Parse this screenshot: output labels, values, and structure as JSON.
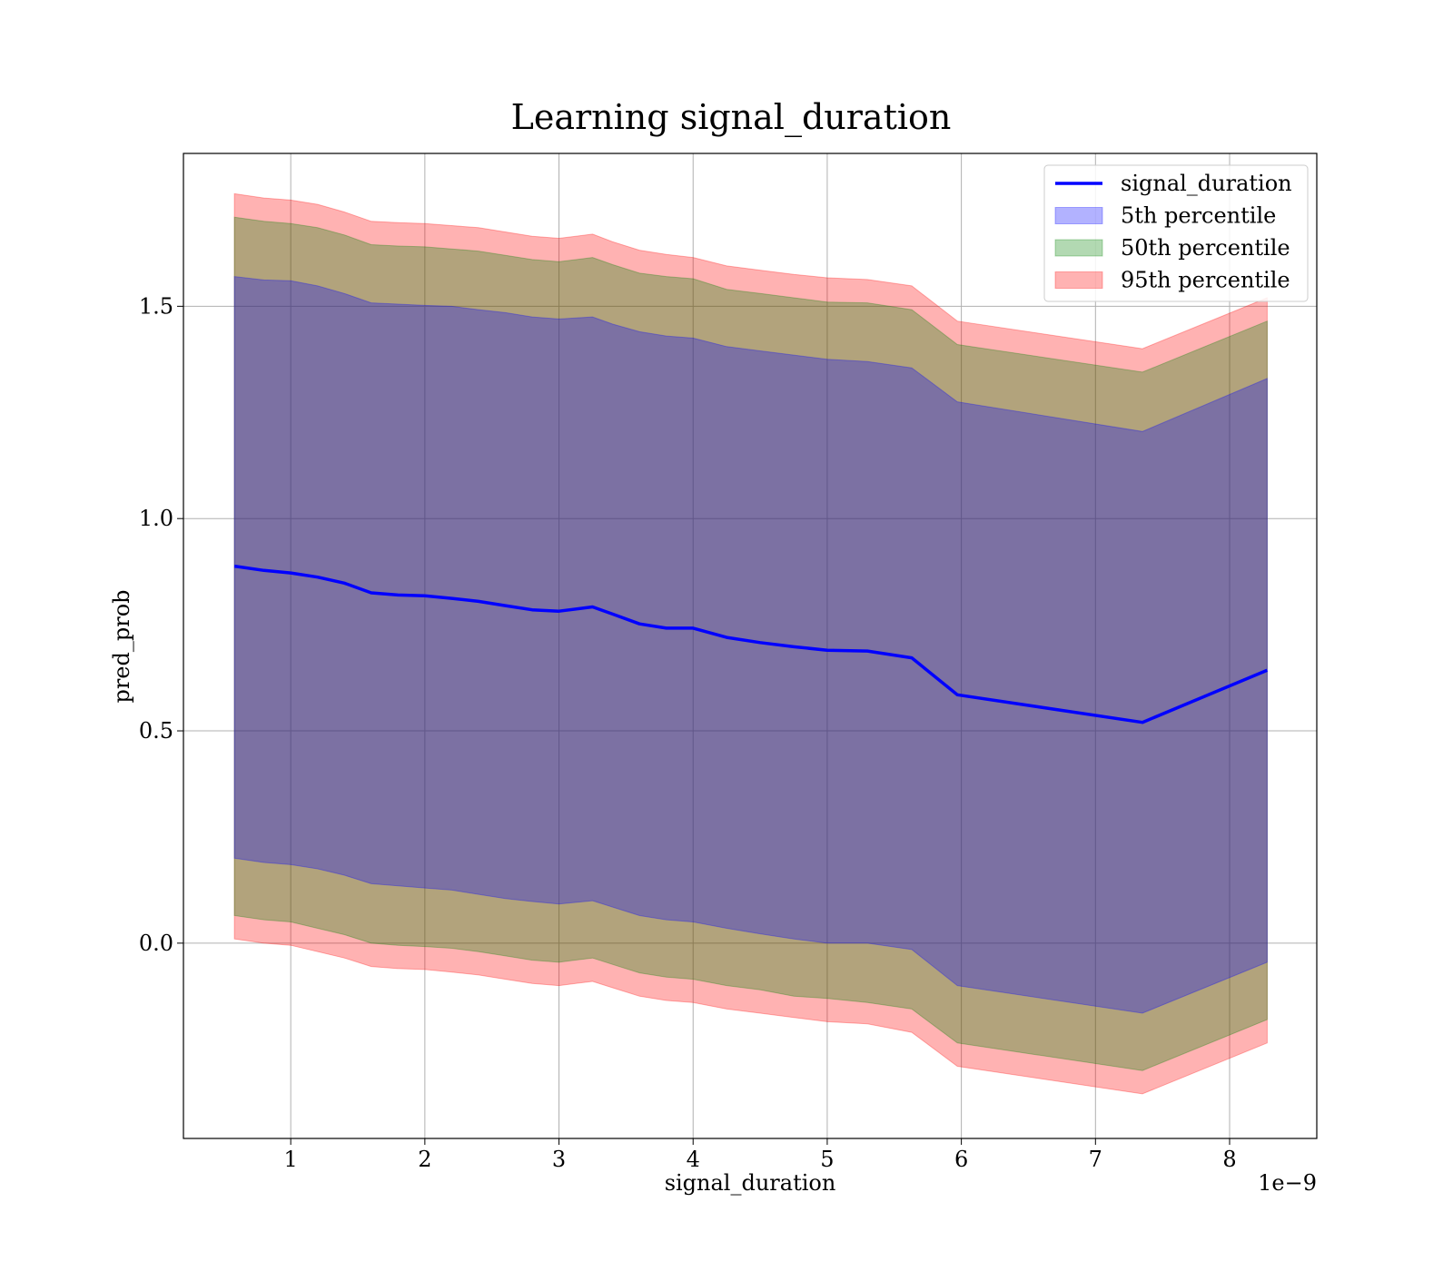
{
  "chart_data": {
    "type": "area",
    "title": "Learning signal_duration",
    "xlabel": "signal_duration",
    "ylabel": "pred_prob",
    "x_offset_label": "1e−9",
    "xlim": [
      0.2,
      8.65
    ],
    "ylim": [
      -0.46,
      1.86
    ],
    "x_ticks": [
      1,
      2,
      3,
      4,
      5,
      6,
      7,
      8
    ],
    "x_tick_labels": [
      "1",
      "2",
      "3",
      "4",
      "5",
      "6",
      "7",
      "8"
    ],
    "y_ticks": [
      0.0,
      0.5,
      1.0,
      1.5
    ],
    "y_tick_labels": [
      "0.0",
      "0.5",
      "1.0",
      "1.5"
    ],
    "grid": true,
    "legend_position": "top-right",
    "x": [
      0.58,
      0.8,
      1.0,
      1.2,
      1.4,
      1.6,
      1.8,
      2.0,
      2.2,
      2.4,
      2.6,
      2.8,
      3.0,
      3.25,
      3.4,
      3.6,
      3.8,
      4.0,
      4.25,
      4.5,
      4.75,
      5.0,
      5.3,
      5.63,
      5.97,
      7.35,
      8.28
    ],
    "series": [
      {
        "name": "signal_duration",
        "kind": "line",
        "color": "#0000ff",
        "values": [
          0.888,
          0.878,
          0.872,
          0.862,
          0.848,
          0.825,
          0.82,
          0.818,
          0.812,
          0.805,
          0.795,
          0.785,
          0.782,
          0.792,
          0.775,
          0.752,
          0.742,
          0.742,
          0.72,
          0.708,
          0.698,
          0.69,
          0.688,
          0.672,
          0.585,
          0.52,
          0.643
        ]
      },
      {
        "name": "5th percentile",
        "kind": "band",
        "color": "#0000ff",
        "lower": [
          0.2,
          0.19,
          0.185,
          0.175,
          0.16,
          0.14,
          0.135,
          0.13,
          0.125,
          0.115,
          0.105,
          0.098,
          0.092,
          0.1,
          0.085,
          0.065,
          0.055,
          0.05,
          0.035,
          0.022,
          0.01,
          0.0,
          0.0,
          -0.015,
          -0.1,
          -0.165,
          -0.045
        ],
        "upper": [
          1.57,
          1.562,
          1.56,
          1.548,
          1.53,
          1.508,
          1.505,
          1.502,
          1.5,
          1.492,
          1.485,
          1.475,
          1.47,
          1.475,
          1.458,
          1.44,
          1.43,
          1.425,
          1.405,
          1.395,
          1.385,
          1.375,
          1.37,
          1.355,
          1.275,
          1.205,
          1.33
        ]
      },
      {
        "name": "50th percentile",
        "kind": "band",
        "color": "#008000",
        "lower": [
          0.065,
          0.055,
          0.05,
          0.035,
          0.02,
          0.0,
          -0.005,
          -0.008,
          -0.012,
          -0.02,
          -0.03,
          -0.04,
          -0.045,
          -0.035,
          -0.05,
          -0.07,
          -0.08,
          -0.085,
          -0.1,
          -0.11,
          -0.125,
          -0.13,
          -0.14,
          -0.155,
          -0.235,
          -0.3,
          -0.18
        ],
        "upper": [
          1.71,
          1.7,
          1.695,
          1.685,
          1.668,
          1.645,
          1.642,
          1.64,
          1.635,
          1.63,
          1.62,
          1.61,
          1.605,
          1.615,
          1.598,
          1.578,
          1.57,
          1.565,
          1.54,
          1.53,
          1.52,
          1.51,
          1.508,
          1.492,
          1.41,
          1.345,
          1.465
        ]
      },
      {
        "name": "95th percentile",
        "kind": "band",
        "color": "#ff0000",
        "lower": [
          0.01,
          0.0,
          -0.005,
          -0.02,
          -0.035,
          -0.055,
          -0.06,
          -0.062,
          -0.068,
          -0.075,
          -0.085,
          -0.095,
          -0.1,
          -0.09,
          -0.105,
          -0.125,
          -0.135,
          -0.14,
          -0.155,
          -0.165,
          -0.175,
          -0.185,
          -0.19,
          -0.21,
          -0.29,
          -0.355,
          -0.235
        ],
        "upper": [
          1.765,
          1.755,
          1.75,
          1.74,
          1.722,
          1.7,
          1.697,
          1.695,
          1.69,
          1.685,
          1.675,
          1.665,
          1.66,
          1.67,
          1.652,
          1.632,
          1.622,
          1.615,
          1.595,
          1.585,
          1.575,
          1.567,
          1.563,
          1.548,
          1.465,
          1.4,
          1.52
        ]
      }
    ]
  }
}
